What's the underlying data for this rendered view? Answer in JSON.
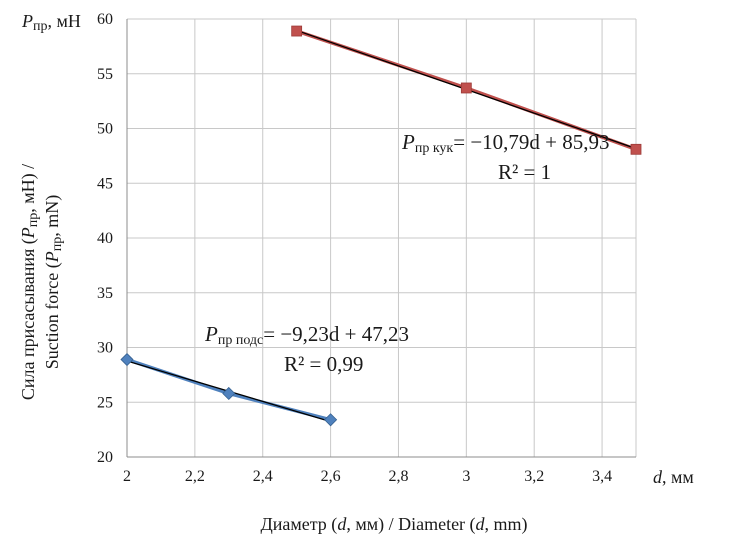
{
  "chart_data": {
    "type": "scatter",
    "xlabel": "Диаметр (d, мм) / Diameter (d, mm)",
    "ylabel_line1": "Сила присасывания (Pпр, мН) /",
    "ylabel_line2": "Suction force (Pпр, mN)",
    "y_unit_label": "Pпр, мН",
    "x_unit_label": "d, мм",
    "xlim": [
      2,
      3.5
    ],
    "ylim": [
      20,
      60
    ],
    "grid": true,
    "x_ticks": [
      2,
      2.2,
      2.4,
      2.6,
      2.8,
      3,
      3.2,
      3.4
    ],
    "x_tick_labels": [
      "2",
      "2,2",
      "2,4",
      "2,6",
      "2,8",
      "3",
      "3,2",
      "3,4"
    ],
    "y_ticks": [
      20,
      25,
      30,
      35,
      40,
      45,
      50,
      55,
      60
    ],
    "y_tick_labels": [
      "20",
      "25",
      "30",
      "35",
      "40",
      "45",
      "50",
      "55",
      "60"
    ],
    "series": [
      {
        "color": "#c0504d",
        "marker": "square",
        "x": [
          2.5,
          3.0,
          3.5
        ],
        "y": [
          58.9,
          53.7,
          48.1
        ],
        "trendline": {
          "slope": -10.79,
          "intercept": 85.93,
          "color": "#000000"
        },
        "equation_label": "= −10,79d + 85,93",
        "equation_subscript": "пр кук",
        "r2_label": "R² = 1"
      },
      {
        "color": "#4f81bd",
        "marker": "diamond",
        "x": [
          2.0,
          2.3,
          2.6
        ],
        "y": [
          28.9,
          25.8,
          23.4
        ],
        "trendline": {
          "slope": -9.23,
          "intercept": 47.23,
          "color": "#000000"
        },
        "equation_label": "= −9,23d + 47,23",
        "equation_subscript": "пр подс",
        "r2_label": "R² = 0,99"
      }
    ]
  }
}
